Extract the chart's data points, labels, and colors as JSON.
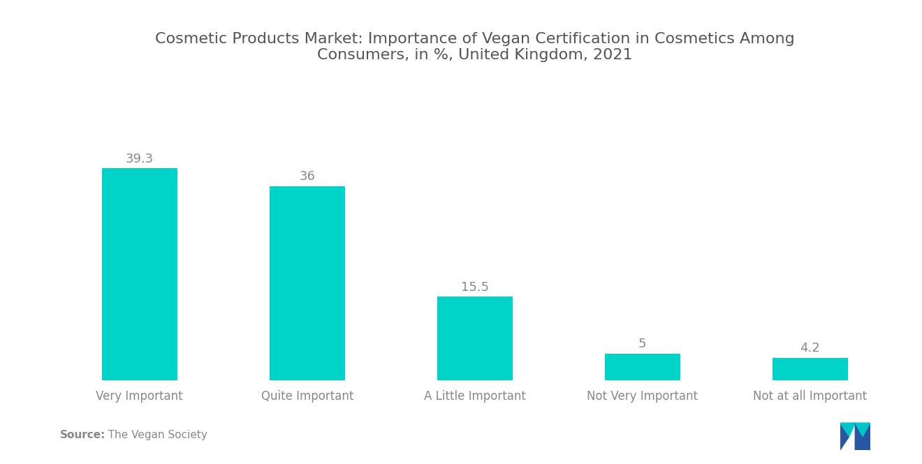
{
  "title": "Cosmetic Products Market: Importance of Vegan Certification in Cosmetics Among\nConsumers, in %, United Kingdom, 2021",
  "categories": [
    "Very Important",
    "Quite Important",
    "A Little Important",
    "Not Very Important",
    "Not at all Important"
  ],
  "values": [
    39.3,
    36.0,
    15.5,
    5.0,
    4.2
  ],
  "bar_color": "#00D4C8",
  "label_color": "#888888",
  "title_color": "#555555",
  "source_bold": "Source:",
  "source_rest": "  The Vegan Society",
  "background_color": "#ffffff",
  "value_label_fontsize": 13,
  "category_label_fontsize": 12,
  "title_fontsize": 16,
  "source_fontsize": 11,
  "ylim": [
    0,
    55
  ],
  "bar_width": 0.45,
  "logo_blue": "#2856A3",
  "logo_teal": "#00C5C8"
}
